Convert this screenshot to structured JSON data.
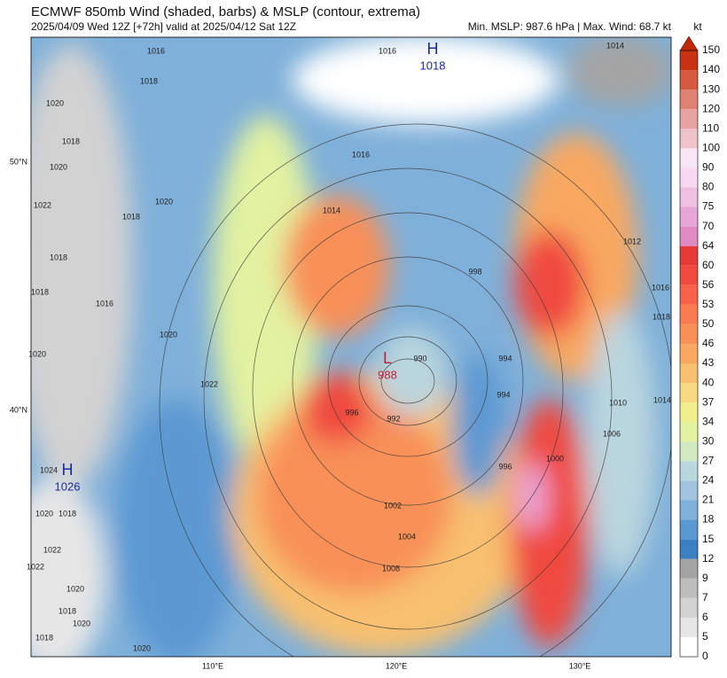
{
  "header": {
    "title": "ECMWF 850mb Wind (shaded, barbs) & MSLP (contour, extrema)",
    "subtitle": "2025/04/09 Wed 12Z [+72h] valid at 2025/04/12 Sat 12Z",
    "stats": "Min. MSLP: 987.6 hPa | Max. Wind: 68.7 kt"
  },
  "colorbar": {
    "unit": "kt",
    "levels": [
      0,
      5,
      6,
      7,
      9,
      12,
      15,
      18,
      21,
      24,
      27,
      30,
      34,
      37,
      40,
      43,
      46,
      50,
      53,
      56,
      60,
      64,
      70,
      75,
      80,
      90,
      100,
      110,
      120,
      130,
      140,
      150
    ],
    "colors": [
      "#ffffff",
      "#e6e6e6",
      "#d2d2d2",
      "#bcbcbc",
      "#a4a4a4",
      "#3b80c2",
      "#5b99d2",
      "#7fb0d9",
      "#a0c4dd",
      "#bad6de",
      "#d2eac0",
      "#e2f2a0",
      "#f2f08e",
      "#f8d880",
      "#f8c070",
      "#f8a860",
      "#f89058",
      "#f87a50",
      "#f86248",
      "#f04a40",
      "#e63a38",
      "#e08cc4",
      "#e8a6d6",
      "#f0c0e2",
      "#f8d8f0",
      "#f6e6f6",
      "#f0c2ca",
      "#e8a2a2",
      "#e08272",
      "#d65a42",
      "#c83212"
    ],
    "extend_color": "#c02800"
  },
  "axes": {
    "lat": [
      "50°N",
      "40°N"
    ],
    "lon": [
      "110°E",
      "120°E",
      "130°E"
    ]
  },
  "extrema": [
    {
      "type": "H",
      "value": 1018
    },
    {
      "type": "L",
      "value": 988
    },
    {
      "type": "H",
      "value": 1026
    }
  ],
  "contour_labels": [
    1016,
    1018,
    1020,
    1018,
    1020,
    1022,
    1020,
    1018,
    1018,
    1016,
    1018,
    1020,
    1022,
    1016,
    1014,
    1014,
    1016,
    998,
    990,
    992,
    996,
    994,
    994,
    996,
    1000,
    1006,
    1010,
    1014,
    1016,
    1018,
    1012,
    1002,
    1004,
    1008,
    1022,
    1020,
    1024,
    1020,
    1018,
    1022,
    1020,
    1018,
    1018,
    1020,
    1020
  ]
}
